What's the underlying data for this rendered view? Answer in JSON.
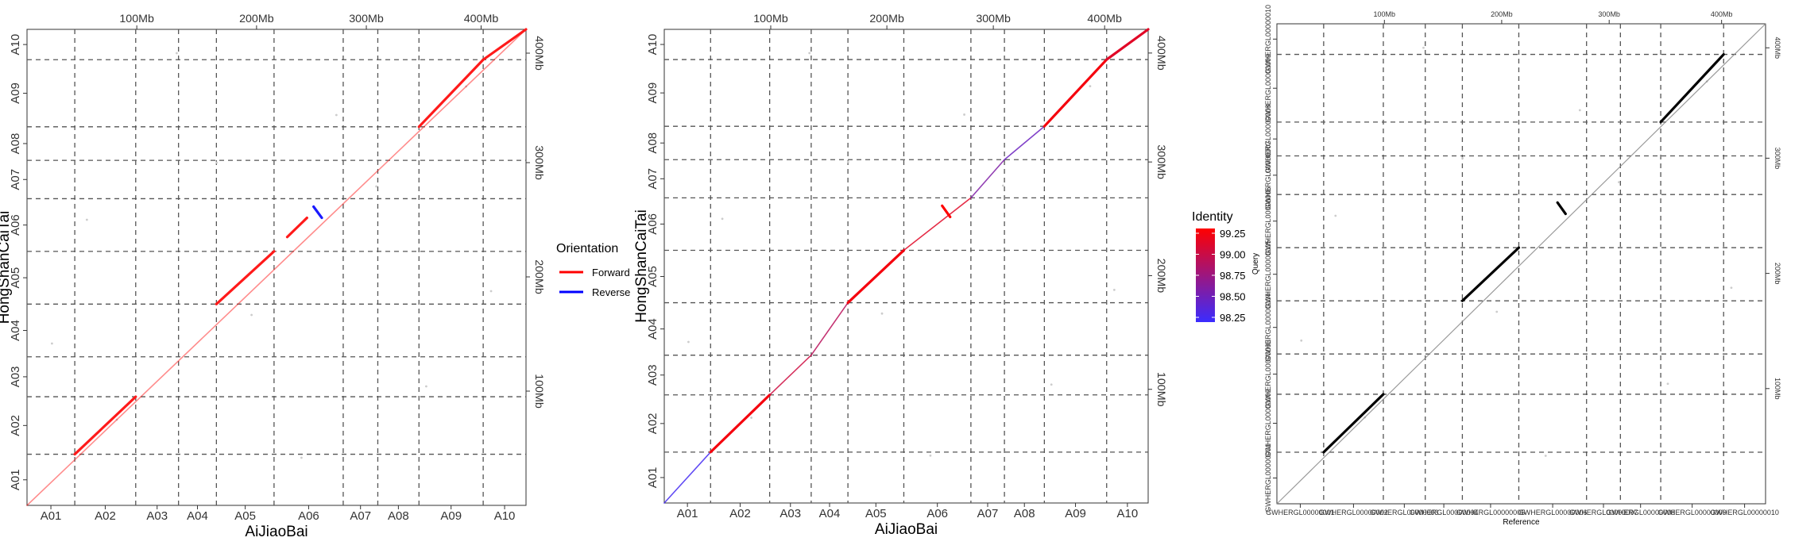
{
  "chart_data": [
    {
      "type": "scatter",
      "subtype": "dotplot",
      "xlabel": "AiJiaoBai",
      "ylabel": "HongShanCaiTai",
      "chromosomes": [
        "A01",
        "A02",
        "A03",
        "A04",
        "A05",
        "A06",
        "A07",
        "A08",
        "A09",
        "A10"
      ],
      "x_bounds_mb": [
        0,
        29,
        66,
        92,
        115,
        150,
        192,
        213,
        238,
        277,
        303
      ],
      "y_bounds_mb": [
        0,
        32,
        68,
        93,
        126,
        159,
        192,
        216,
        237,
        279,
        298
      ],
      "x_top_ticks": [
        "100Mb",
        "200Mb",
        "300Mb",
        "400Mb"
      ],
      "y_right_ticks": [
        "100Mb",
        "200Mb",
        "300Mb",
        "400Mb"
      ],
      "grid_dashed": true,
      "legend": {
        "title": "Orientation",
        "position": "right",
        "items": [
          {
            "label": "Forward",
            "color": "#ff0000"
          },
          {
            "label": "Reverse",
            "color": "#0000ff"
          }
        ]
      },
      "segments": [
        {
          "x": [
            0,
            303
          ],
          "y": [
            0,
            298
          ],
          "orientation": "Forward",
          "weight": "light"
        },
        {
          "x": [
            29,
            66
          ],
          "y": [
            32,
            68
          ],
          "orientation": "Forward",
          "weight": "dense"
        },
        {
          "x": [
            115,
            150
          ],
          "y": [
            126,
            159
          ],
          "orientation": "Forward",
          "weight": "dense"
        },
        {
          "x": [
            158,
            170
          ],
          "y": [
            168,
            180
          ],
          "orientation": "Forward",
          "weight": "dense"
        },
        {
          "x": [
            174,
            179
          ],
          "y": [
            187,
            180
          ],
          "orientation": "Reverse",
          "weight": "dense"
        },
        {
          "x": [
            238,
            277
          ],
          "y": [
            237,
            279
          ],
          "orientation": "Forward",
          "weight": "dense"
        },
        {
          "x": [
            277,
            303
          ],
          "y": [
            279,
            298
          ],
          "orientation": "Forward",
          "weight": "dense"
        }
      ]
    },
    {
      "type": "scatter",
      "subtype": "dotplot",
      "xlabel": "AiJiaoBai",
      "ylabel": "HongShanCaiTai",
      "chromosomes": [
        "A01",
        "A02",
        "A03",
        "A04",
        "A05",
        "A06",
        "A07",
        "A08",
        "A09",
        "A10"
      ],
      "x_bounds_mb": [
        0,
        29,
        66,
        92,
        115,
        150,
        192,
        213,
        238,
        277,
        303
      ],
      "y_bounds_mb": [
        0,
        32,
        68,
        93,
        126,
        159,
        192,
        216,
        237,
        279,
        298
      ],
      "x_top_ticks": [
        "100Mb",
        "200Mb",
        "300Mb",
        "400Mb"
      ],
      "y_right_ticks": [
        "100Mb",
        "200Mb",
        "300Mb",
        "400Mb"
      ],
      "grid_dashed": true,
      "legend": {
        "title": "Identity",
        "position": "right",
        "type": "colorbar",
        "ticks": [
          "99.25",
          "99.00",
          "98.75",
          "98.50",
          "98.25"
        ],
        "range": [
          98.25,
          99.25
        ],
        "low_color": "#3a2cff",
        "high_color": "#ff0000"
      },
      "segments": [
        {
          "x": [
            0,
            29
          ],
          "y": [
            0,
            32
          ],
          "identity": 98.3,
          "weight": "light"
        },
        {
          "x": [
            29,
            66
          ],
          "y": [
            32,
            68
          ],
          "identity": 99.2,
          "weight": "dense"
        },
        {
          "x": [
            66,
            92
          ],
          "y": [
            68,
            93
          ],
          "identity": 99.0,
          "weight": "light"
        },
        {
          "x": [
            92,
            115
          ],
          "y": [
            93,
            126
          ],
          "identity": 98.9,
          "weight": "light"
        },
        {
          "x": [
            115,
            150
          ],
          "y": [
            126,
            159
          ],
          "identity": 99.2,
          "weight": "dense"
        },
        {
          "x": [
            150,
            192
          ],
          "y": [
            159,
            192
          ],
          "identity": 99.1,
          "weight": "light"
        },
        {
          "x": [
            174,
            179
          ],
          "y": [
            187,
            180
          ],
          "identity": 99.25,
          "weight": "dense"
        },
        {
          "x": [
            192,
            213
          ],
          "y": [
            192,
            216
          ],
          "identity": 98.6,
          "weight": "light"
        },
        {
          "x": [
            213,
            238
          ],
          "y": [
            216,
            237
          ],
          "identity": 98.5,
          "weight": "light"
        },
        {
          "x": [
            238,
            277
          ],
          "y": [
            237,
            279
          ],
          "identity": 99.2,
          "weight": "dense"
        },
        {
          "x": [
            277,
            303
          ],
          "y": [
            279,
            298
          ],
          "identity": 99.1,
          "weight": "dense"
        }
      ]
    },
    {
      "type": "scatter",
      "subtype": "dotplot",
      "xlabel": "Reference",
      "ylabel": "Query",
      "x_tick_labels": [
        "GWHERGL00000001",
        "GWHERGL00000002",
        "GWHERGL00000003",
        "GWHERGL00000004",
        "GWHERGL00000005",
        "GWHERGL00000006",
        "GWHERGL00000007",
        "GWHERGL00000008",
        "GWHERGL00000009",
        "GWHERGL00000010"
      ],
      "y_tick_labels": [
        "GWHERGL00000001",
        "GWHERGL00000002",
        "GWHERGL00000003",
        "GWHERGL00000004",
        "GWHERGL00000005",
        "GWHERGL00000006",
        "GWHERGL00000007",
        "GWHERGL00000008",
        "GWHERGL00000009",
        "GWHERGL00000010"
      ],
      "x_bounds_mb": [
        0,
        29,
        66,
        92,
        115,
        150,
        192,
        213,
        238,
        277,
        303
      ],
      "y_bounds_mb": [
        0,
        32,
        68,
        93,
        126,
        159,
        192,
        216,
        237,
        279,
        298
      ],
      "x_top_ticks": [
        "100Mb",
        "200Mb",
        "300Mb",
        "400Mb"
      ],
      "y_right_ticks": [
        "100Mb",
        "200Mb",
        "300Mb",
        "400Mb"
      ],
      "grid_dashed": true,
      "segments": [
        {
          "x": [
            0,
            303
          ],
          "y": [
            0,
            298
          ],
          "color": "#000000",
          "weight": "light"
        },
        {
          "x": [
            29,
            66
          ],
          "y": [
            32,
            68
          ],
          "color": "#000000",
          "weight": "dense"
        },
        {
          "x": [
            115,
            150
          ],
          "y": [
            126,
            159
          ],
          "color": "#000000",
          "weight": "dense"
        },
        {
          "x": [
            174,
            179
          ],
          "y": [
            187,
            180
          ],
          "color": "#000000",
          "weight": "dense"
        },
        {
          "x": [
            238,
            277
          ],
          "y": [
            237,
            279
          ],
          "color": "#000000",
          "weight": "dense"
        }
      ]
    }
  ]
}
